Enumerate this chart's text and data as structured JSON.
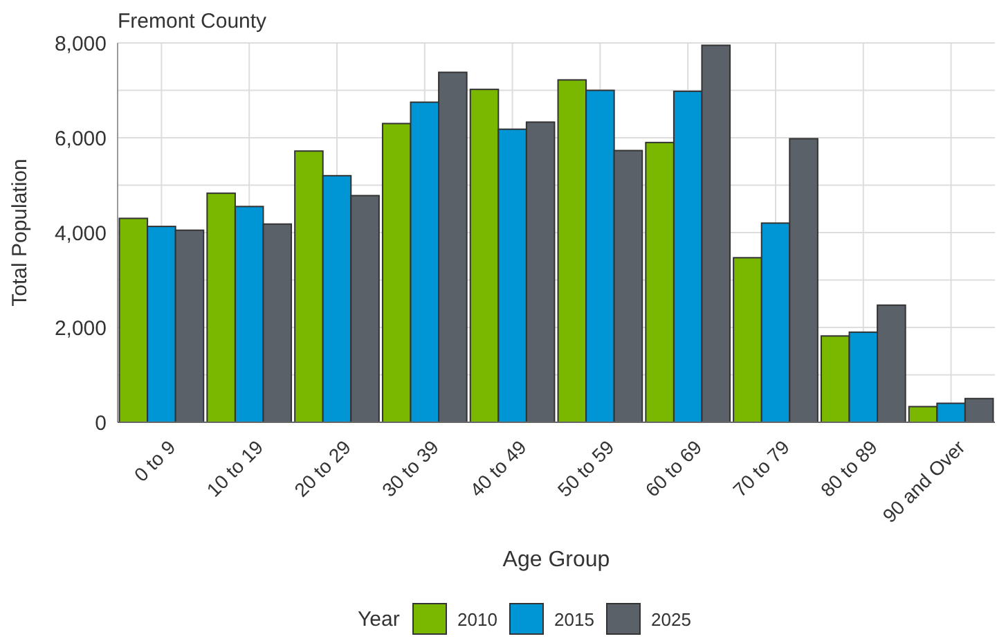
{
  "chart_data": {
    "type": "bar",
    "title": "Fremont County",
    "xlabel": "Age Group",
    "ylabel": "Total Population",
    "legend_title": "Year",
    "categories": [
      "0 to 9",
      "10 to 19",
      "20 to 29",
      "30 to 39",
      "40 to 49",
      "50 to 59",
      "60 to 69",
      "70 to 79",
      "80 to 89",
      "90 and Over"
    ],
    "series": [
      {
        "name": "2010",
        "color": "#7ab800",
        "values": [
          4300,
          4830,
          5720,
          6300,
          7020,
          7220,
          5900,
          3470,
          1820,
          330
        ]
      },
      {
        "name": "2015",
        "color": "#0096d6",
        "values": [
          4130,
          4550,
          5200,
          6750,
          6180,
          7000,
          6980,
          4200,
          1900,
          400
        ]
      },
      {
        "name": "2025",
        "color": "#5b6169",
        "values": [
          4050,
          4180,
          4780,
          7380,
          6330,
          5730,
          7950,
          5980,
          2470,
          500
        ]
      }
    ],
    "ylim": [
      0,
      8000
    ],
    "yticks": [
      {
        "value": 0,
        "label": "0"
      },
      {
        "value": 1000,
        "label": null
      },
      {
        "value": 2000,
        "label": "2,000"
      },
      {
        "value": 3000,
        "label": null
      },
      {
        "value": 4000,
        "label": "4,000"
      },
      {
        "value": 5000,
        "label": null
      },
      {
        "value": 6000,
        "label": "6,000"
      },
      {
        "value": 7000,
        "label": null
      },
      {
        "value": 8000,
        "label": "8,000"
      }
    ],
    "grid": true,
    "legend": "bottom"
  }
}
